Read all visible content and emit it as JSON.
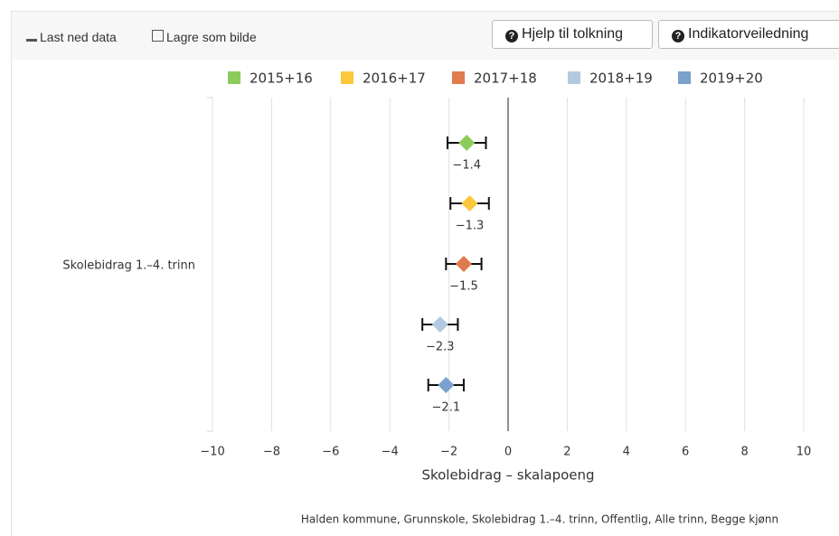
{
  "toolbar": {
    "buttons": [
      "Last ned data",
      "Lagre som bilde",
      "Hjelp til tolkning",
      "Indikatorveiledning"
    ]
  },
  "chart_data": {
    "type": "errorbar",
    "categories": [
      "Skolebidrag 1.–4. trinn"
    ],
    "xlabel": "Skolebidrag – skalapoeng",
    "caption": "Halden kommune, Grunnskole, Skolebidrag 1.–4. trinn, Offentlig, Alle trinn, Begge kjønn",
    "xlim": [
      -10,
      10
    ],
    "xticks": [
      {
        "value": -10,
        "label": "−10"
      },
      {
        "value": -8,
        "label": "−8"
      },
      {
        "value": -6,
        "label": "−6"
      },
      {
        "value": -4,
        "label": "−4"
      },
      {
        "value": -2,
        "label": "−2"
      },
      0,
      2,
      4,
      6,
      8,
      10
    ],
    "grid": true,
    "legend": "top",
    "series": [
      {
        "name": "2015+16",
        "color": "#8dcc5a",
        "values": [
          -1.4
        ],
        "errors": [
          0.65
        ],
        "value_labels": [
          "−1.4"
        ]
      },
      {
        "name": "2016+17",
        "color": "#fcc83b",
        "values": [
          -1.3
        ],
        "errors": [
          0.65
        ],
        "value_labels": [
          "−1.3"
        ]
      },
      {
        "name": "2017+18",
        "color": "#e07b4d",
        "values": [
          -1.5
        ],
        "errors": [
          0.6
        ],
        "value_labels": [
          "−1.5"
        ]
      },
      {
        "name": "2018+19",
        "color": "#b3c9e0",
        "values": [
          -2.3
        ],
        "errors": [
          0.6
        ],
        "value_labels": [
          "−2.3"
        ]
      },
      {
        "name": "2019+20",
        "color": "#7ba1cc",
        "values": [
          -2.1
        ],
        "errors": [
          0.6
        ],
        "value_labels": [
          "−2.1"
        ]
      }
    ]
  }
}
